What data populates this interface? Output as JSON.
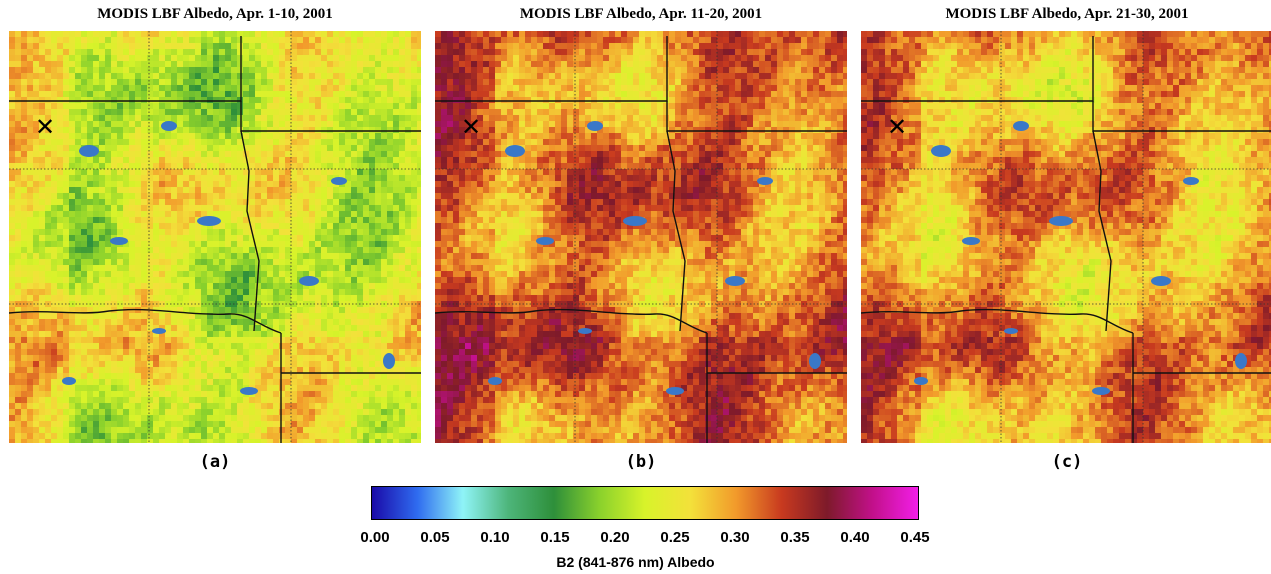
{
  "panels": [
    {
      "title": "MODIS LBF Albedo, Apr. 1-10, 2001",
      "label": "(a)",
      "level": 0.23
    },
    {
      "title": "MODIS LBF Albedo, Apr. 11-20, 2001",
      "label": "(b)",
      "level": 0.31
    },
    {
      "title": "MODIS LBF Albedo, Apr. 21-30, 2001",
      "label": "(c)",
      "level": 0.29
    }
  ],
  "colorbar": {
    "title": "B2 (841-876 nm) Albedo",
    "ticks": [
      "0.00",
      "0.05",
      "0.10",
      "0.15",
      "0.20",
      "0.25",
      "0.30",
      "0.35",
      "0.40",
      "0.45"
    ],
    "min": 0.0,
    "max": 0.45,
    "colors": [
      "#1a0aa8",
      "#2f6cf0",
      "#8ff4f7",
      "#4db57a",
      "#2e8f3a",
      "#8ad12c",
      "#d8f32a",
      "#f3e13a",
      "#f29a2b",
      "#c83a1f",
      "#7e1a2a",
      "#c2108a",
      "#f21ee8"
    ]
  },
  "marker": {
    "symbol": "✕"
  },
  "colors": {
    "state_line": "#111111",
    "graticule": "#333333",
    "water": "#3a78c8"
  }
}
